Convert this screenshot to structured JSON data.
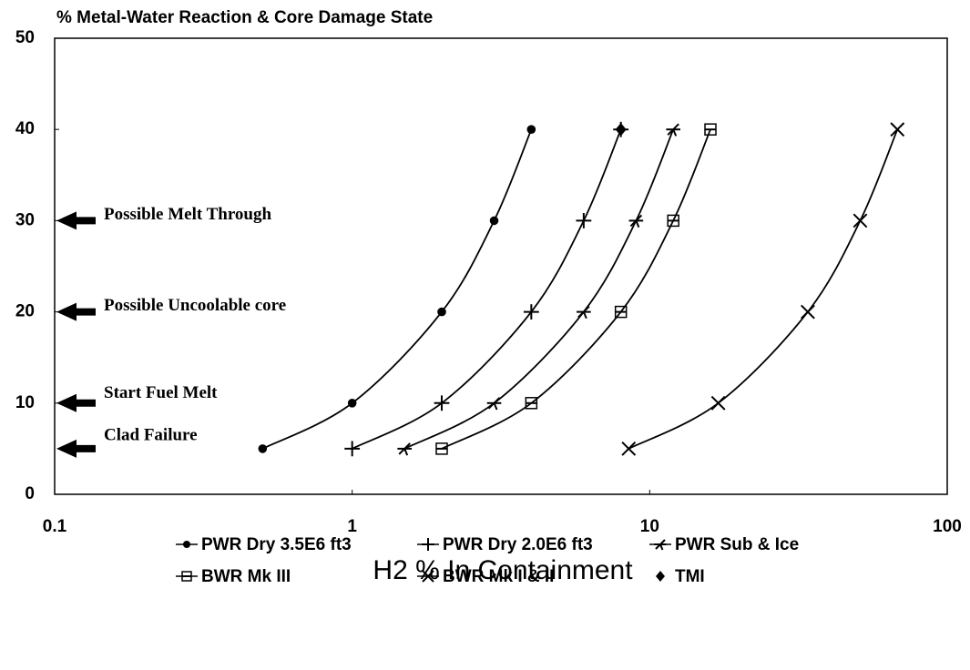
{
  "chart_data": {
    "type": "line",
    "title": "% Metal-Water Reaction & Core Damage State",
    "xlabel": "H2 % In Containment",
    "xscale": "log",
    "xlim": [
      0.1,
      100
    ],
    "xticks": [
      0.1,
      1,
      10,
      100
    ],
    "ylim": [
      0,
      50
    ],
    "yticks": [
      0,
      10,
      20,
      30,
      40,
      50
    ],
    "color": "#000000",
    "legend": "bottom",
    "series": [
      {
        "name": "PWR Dry 3.5E6 ft3",
        "marker": "circle",
        "x": [
          0.5,
          1,
          2,
          3,
          4
        ],
        "values": [
          5,
          10,
          20,
          30,
          40
        ]
      },
      {
        "name": "PWR Dry 2.0E6 ft3",
        "marker": "plus",
        "x": [
          1,
          2,
          4,
          6,
          8
        ],
        "values": [
          5,
          10,
          20,
          30,
          40
        ]
      },
      {
        "name": "PWR Sub & Ice",
        "marker": "star",
        "x": [
          1.5,
          3,
          6,
          9,
          12
        ],
        "values": [
          5,
          10,
          20,
          30,
          40
        ]
      },
      {
        "name": "BWR Mk III",
        "marker": "square",
        "x": [
          2,
          4,
          8,
          12,
          16
        ],
        "values": [
          5,
          10,
          20,
          30,
          40
        ]
      },
      {
        "name": "BWR Mk I & II",
        "marker": "x",
        "x": [
          8.5,
          17,
          34,
          51,
          68
        ],
        "values": [
          5,
          10,
          20,
          30,
          40
        ]
      },
      {
        "name": "TMI",
        "marker": "diamond",
        "x": [
          8
        ],
        "values": [
          40
        ]
      }
    ],
    "annotations": [
      {
        "text": "Possible Melt Through",
        "y": 30
      },
      {
        "text": "Possible Uncoolable core",
        "y": 20
      },
      {
        "text": "Start Fuel Melt",
        "y": 10
      },
      {
        "text": "Clad Failure",
        "y": 5
      }
    ]
  }
}
